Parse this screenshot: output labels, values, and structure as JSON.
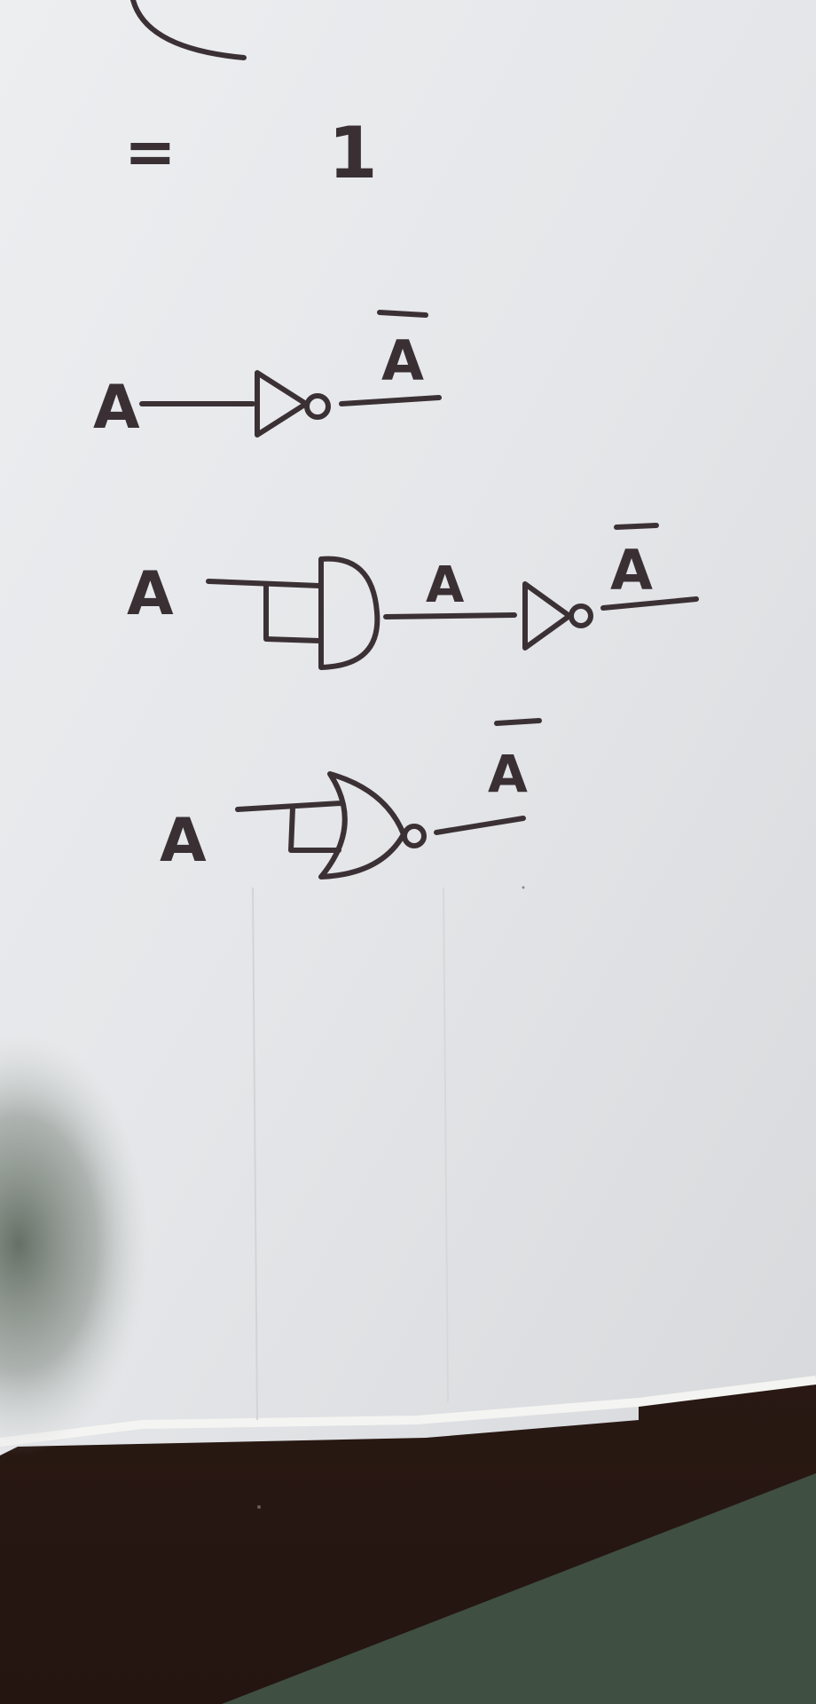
{
  "equation": {
    "symbol": "=",
    "value": "1"
  },
  "circuits": [
    {
      "input_label": "A",
      "output_label": "A",
      "output_overbar": true
    },
    {
      "input_label": "A",
      "middle_label": "A",
      "output_label": "A",
      "output_overbar": true
    },
    {
      "input_label": "A",
      "output_label": "A",
      "output_overbar": true
    }
  ],
  "colors": {
    "paper": "#e6e7e9",
    "ink": "#3b3135",
    "table": "#3a2219",
    "mat": "#3f4f42"
  }
}
